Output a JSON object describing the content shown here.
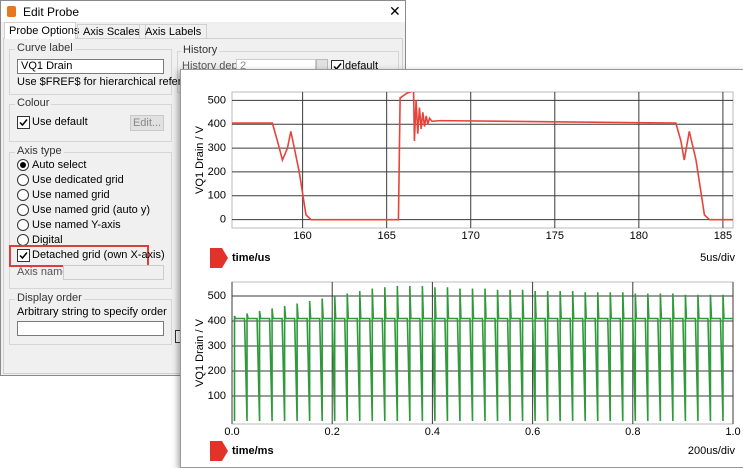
{
  "window": {
    "title": "Edit Probe",
    "tabs": [
      "Probe Options",
      "Axis Scales",
      "Axis Labels"
    ]
  },
  "curve_label": {
    "title": "Curve label",
    "input": "VQ1 Drain",
    "hint": "Use $FREF$ for hierarchical reference"
  },
  "colour": {
    "title": "Colour",
    "use_default": "Use default",
    "button": "Edit..."
  },
  "axis_type": {
    "title": "Axis type",
    "options": [
      "Auto select",
      "Use dedicated grid",
      "Use named grid",
      "Use named grid (auto y)",
      "Use named Y-axis",
      "Digital"
    ],
    "detached": "Detached grid (own X-axis)",
    "axis_name": "Axis name"
  },
  "display_order": {
    "title": "Display order",
    "hint": "Arbitrary string to specify order"
  },
  "history": {
    "title": "History",
    "depth_label": "History depth",
    "depth_value": "2",
    "default": "default"
  },
  "chart_data": [
    {
      "type": "line",
      "y_label": "VQ1 Drain / V",
      "x_label": "time/us",
      "scale_label": "5us/div",
      "color": "#e8433b",
      "grid": true,
      "xlim": [
        155.8,
        185.6
      ],
      "ylim": [
        -35,
        535
      ],
      "xticks": [
        160,
        165,
        170,
        175,
        180,
        185
      ],
      "yticks": [
        0,
        100,
        200,
        300,
        400,
        500
      ],
      "x": [
        155.8,
        158.2,
        158.5,
        158.8,
        159.1,
        159.3,
        159.8,
        160.2,
        160.5,
        165.7,
        165.8,
        166.2,
        166.6,
        166.65,
        166.75,
        166.85,
        166.95,
        167.05,
        167.15,
        167.25,
        167.35,
        167.45,
        167.55,
        167.7,
        168.2,
        175,
        182.2,
        182.5,
        182.7,
        183.0,
        183.4,
        183.9,
        184.2,
        185.6
      ],
      "values": [
        405,
        405,
        330,
        250,
        300,
        370,
        200,
        20,
        0,
        0,
        510,
        530,
        540,
        330,
        500,
        360,
        470,
        380,
        450,
        390,
        435,
        400,
        425,
        412,
        415,
        410,
        405,
        330,
        250,
        370,
        250,
        20,
        0,
        0
      ]
    },
    {
      "type": "line",
      "y_label": "VQ1 Drain / V",
      "x_label": "time/ms",
      "scale_label": "200us/div",
      "color": "#2f9a3a",
      "grid": true,
      "xlim": [
        0,
        1
      ],
      "ylim": [
        -12,
        556
      ],
      "xticks": [
        {
          "value": 0,
          "label": "0.0"
        },
        0.2,
        0.4,
        0.6,
        0.8,
        {
          "value": 1,
          "label": "1.0"
        }
      ],
      "yticks": [
        100,
        200,
        300,
        400,
        500
      ],
      "x": [
        0.005,
        0.005,
        0.007,
        0.025,
        0.03,
        0.03,
        0.032,
        0.05,
        0.055,
        0.055,
        0.057,
        0.075,
        0.08,
        0.08,
        0.082,
        0.1,
        0.105,
        0.105,
        0.107,
        0.125,
        0.13,
        0.13,
        0.132,
        0.15,
        0.155,
        0.155,
        0.157,
        0.175,
        0.18,
        0.18,
        0.182,
        0.2,
        0.205,
        0.205,
        0.207,
        0.225,
        0.23,
        0.23,
        0.232,
        0.25,
        0.255,
        0.255,
        0.257,
        0.275,
        0.28,
        0.28,
        0.282,
        0.3,
        0.305,
        0.305,
        0.307,
        0.325,
        0.33,
        0.33,
        0.332,
        0.35,
        0.355,
        0.355,
        0.357,
        0.375,
        0.38,
        0.38,
        0.382,
        0.4,
        0.405,
        0.405,
        0.407,
        0.425,
        0.43,
        0.43,
        0.432,
        0.45,
        0.455,
        0.455,
        0.457,
        0.475,
        0.48,
        0.48,
        0.482,
        0.5,
        0.505,
        0.505,
        0.507,
        0.525,
        0.53,
        0.53,
        0.532,
        0.55,
        0.555,
        0.555,
        0.557,
        0.575,
        0.58,
        0.58,
        0.582,
        0.6,
        0.605,
        0.605,
        0.607,
        0.625,
        0.63,
        0.63,
        0.632,
        0.65,
        0.655,
        0.655,
        0.657,
        0.675,
        0.68,
        0.68,
        0.682,
        0.7,
        0.705,
        0.705,
        0.707,
        0.725,
        0.73,
        0.73,
        0.732,
        0.75,
        0.755,
        0.755,
        0.757,
        0.775,
        0.78,
        0.78,
        0.782,
        0.8,
        0.805,
        0.805,
        0.807,
        0.825,
        0.83,
        0.83,
        0.832,
        0.85,
        0.855,
        0.855,
        0.857,
        0.875,
        0.88,
        0.88,
        0.882,
        0.9,
        0.905,
        0.905,
        0.907,
        0.925,
        0.93,
        0.93,
        0.932,
        0.95,
        0.955,
        0.955,
        0.957,
        0.975,
        0.98,
        0.98,
        0.982,
        1.0
      ],
      "values": [
        0,
        420,
        410,
        410,
        0,
        430,
        410,
        410,
        0,
        440,
        410,
        410,
        0,
        450,
        410,
        410,
        0,
        460,
        410,
        410,
        0,
        470,
        410,
        410,
        0,
        480,
        410,
        410,
        0,
        490,
        410,
        410,
        0,
        500,
        410,
        410,
        0,
        510,
        410,
        410,
        0,
        520,
        410,
        410,
        0,
        530,
        410,
        410,
        0,
        535,
        410,
        410,
        0,
        540,
        410,
        410,
        0,
        540,
        410,
        410,
        0,
        540,
        410,
        410,
        0,
        535,
        410,
        410,
        0,
        535,
        410,
        410,
        0,
        530,
        410,
        410,
        0,
        530,
        410,
        410,
        0,
        530,
        410,
        410,
        0,
        525,
        410,
        410,
        0,
        525,
        410,
        410,
        0,
        525,
        410,
        410,
        0,
        520,
        410,
        410,
        0,
        520,
        410,
        410,
        0,
        520,
        410,
        410,
        0,
        520,
        410,
        410,
        0,
        515,
        410,
        410,
        0,
        515,
        410,
        410,
        0,
        515,
        410,
        410,
        0,
        515,
        410,
        410,
        0,
        510,
        410,
        410,
        0,
        510,
        410,
        410,
        0,
        510,
        410,
        410,
        0,
        510,
        410,
        410,
        0,
        505,
        410,
        410,
        0,
        505,
        410,
        410,
        0,
        505,
        410,
        410,
        0,
        505,
        410,
        410
      ]
    }
  ]
}
